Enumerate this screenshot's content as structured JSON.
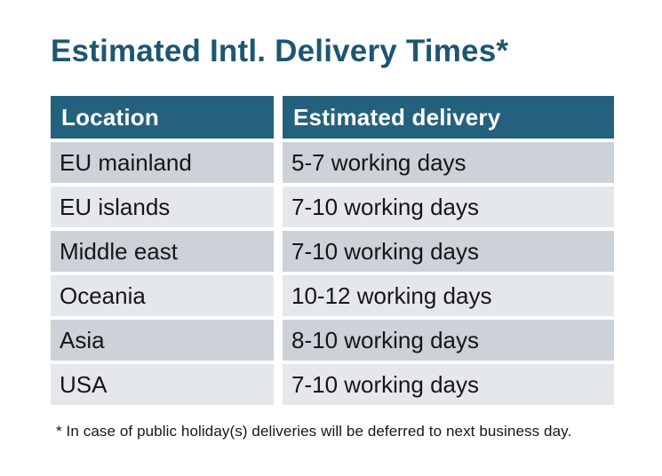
{
  "title": "Estimated Intl. Delivery Times*",
  "table": {
    "headers": [
      "Location",
      "Estimated delivery"
    ],
    "rows": [
      {
        "location": "EU mainland",
        "delivery": "5-7 working days"
      },
      {
        "location": "EU islands",
        "delivery": "7-10 working days"
      },
      {
        "location": "Middle east",
        "delivery": "7-10 working days"
      },
      {
        "location": "Oceania",
        "delivery": "10-12 working days"
      },
      {
        "location": "Asia",
        "delivery": "8-10 working days"
      },
      {
        "location": "USA",
        "delivery": "7-10 working days"
      }
    ]
  },
  "footnote": "* In case of public holiday(s) deliveries will be deferred to next business day.",
  "colors": {
    "title": "#1d5671",
    "header_bg": "#24617e",
    "header_text": "#ffffff",
    "row_dark": "#cdd1d8",
    "row_light": "#e5e8eb",
    "body_text": "#161616"
  },
  "chart_data": {
    "type": "table",
    "title": "Estimated Intl. Delivery Times*",
    "columns": [
      "Location",
      "Estimated delivery"
    ],
    "rows": [
      [
        "EU mainland",
        "5-7 working days"
      ],
      [
        "EU islands",
        "7-10 working days"
      ],
      [
        "Middle east",
        "7-10 working days"
      ],
      [
        "Oceania",
        "10-12 working days"
      ],
      [
        "Asia",
        "8-10 working days"
      ],
      [
        "USA",
        "7-10 working days"
      ]
    ],
    "footnote": "* In case of public holiday(s) deliveries will be deferred to next business day.",
    "layout": {
      "header_style": "solid teal band, white bold text",
      "row_style": "alternating gray bands starting dark, white gaps between cells",
      "grid": "off"
    }
  }
}
